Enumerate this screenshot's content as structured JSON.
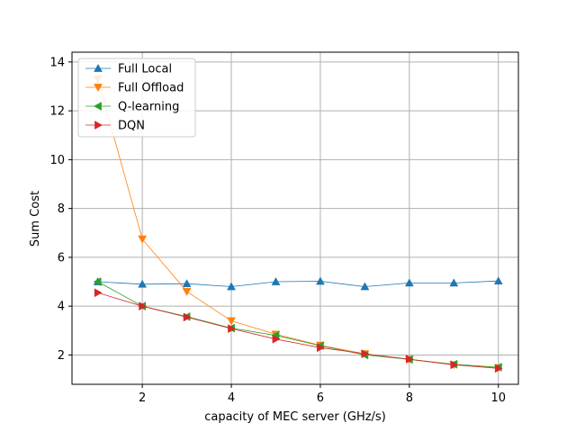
{
  "chart_data": {
    "type": "line",
    "xlabel": "capacity of MEC server (GHz/s)",
    "ylabel": "Sum Cost",
    "xlim": [
      0.42,
      10.45
    ],
    "ylim": [
      0.8,
      14.4
    ],
    "xticks": [
      2,
      4,
      6,
      8,
      10
    ],
    "yticks": [
      2,
      4,
      6,
      8,
      10,
      12,
      14
    ],
    "grid": true,
    "legend_position": "top-left",
    "x": [
      1,
      2,
      3,
      4,
      5,
      6,
      7,
      8,
      9,
      10
    ],
    "series": [
      {
        "name": "Full Local",
        "color": "#1f77b4",
        "marker": "triangle-up",
        "values": [
          5.0,
          4.9,
          4.92,
          4.8,
          5.0,
          5.02,
          4.8,
          4.95,
          4.95,
          5.03
        ]
      },
      {
        "name": "Full Offload",
        "color": "#ff7f0e",
        "marker": "triangle-down",
        "values": [
          13.3,
          6.75,
          4.6,
          3.4,
          2.85,
          2.4,
          2.05,
          1.82,
          1.6,
          1.48
        ]
      },
      {
        "name": "Q-learning",
        "color": "#2ca02c",
        "marker": "triangle-left",
        "values": [
          5.0,
          4.0,
          3.57,
          3.1,
          2.8,
          2.38,
          2.0,
          1.82,
          1.62,
          1.5
        ]
      },
      {
        "name": "DQN",
        "color": "#d62728",
        "marker": "triangle-right",
        "values": [
          4.55,
          4.0,
          3.55,
          3.08,
          2.65,
          2.3,
          2.05,
          1.83,
          1.6,
          1.45
        ]
      }
    ]
  }
}
